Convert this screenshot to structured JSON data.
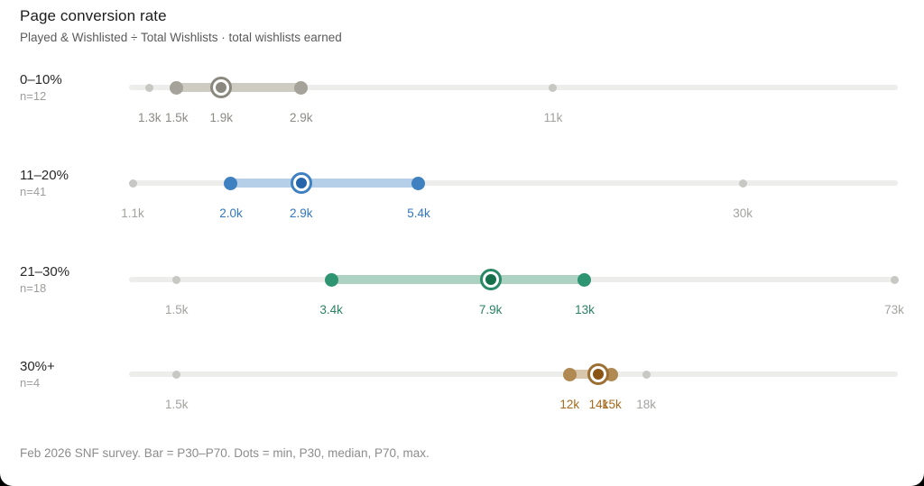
{
  "header": {
    "title": "Page conversion rate",
    "subtitle": "Played & Wishlisted ÷ Total Wishlists · total wishlists earned"
  },
  "footer": {
    "note": "Feb 2026 SNF survey. Bar = P30–P70. Dots = min, P30, median, P70, max."
  },
  "colors": {
    "track": "#ededeb",
    "gray_dot": "#c7c7c4",
    "gray_label": "#a2a29f"
  },
  "chart_data": {
    "type": "dot-range",
    "title": "Page conversion rate",
    "subtitle": "Played & Wishlisted ÷ Total Wishlists · total wishlists earned",
    "note": "Feb 2026 SNF survey. Bar = P30–P70. Dots = min, P30, median, P70, max.",
    "axis": {
      "scale": "log10",
      "domain_min": 1166,
      "domain_max": 68180,
      "unit": "total wishlists earned"
    },
    "legend": {
      "bar": "P30–P70",
      "dots": "min, P30, median, P70, max"
    },
    "rows": [
      {
        "range": "0–10%",
        "n": "n=12",
        "points": {
          "min": 1300,
          "p30": 1500,
          "median": 1900,
          "p70": 2900,
          "max": 11000
        },
        "labels": {
          "min": "1.3k",
          "p30": "1.5k",
          "median": "1.9k",
          "p70": "2.9k",
          "max": "11k"
        },
        "min_label_colored": true,
        "color": {
          "bar": "#cecbc2",
          "dot": "#a5a299",
          "ring": "#8b897f",
          "inner": "#8b897f",
          "label": "#8c8a82"
        }
      },
      {
        "range": "11–20%",
        "n": "n=41",
        "points": {
          "min": 1100,
          "p30": 2000,
          "median": 2900,
          "p70": 5400,
          "max": 30000
        },
        "labels": {
          "min": "1.1k",
          "p30": "2.0k",
          "median": "2.9k",
          "p70": "5.4k",
          "max": "30k"
        },
        "min_label_colored": false,
        "color": {
          "bar": "#b5cfe9",
          "dot": "#3f80c1",
          "ring": "#3f80c1",
          "inner": "#2765aa",
          "label": "#3377bd"
        }
      },
      {
        "range": "21–30%",
        "n": "n=18",
        "points": {
          "min": 1500,
          "p30": 3400,
          "median": 7900,
          "p70": 13000,
          "max": 73000
        },
        "labels": {
          "min": "1.5k",
          "p30": "3.4k",
          "median": "7.9k",
          "p70": "13k",
          "max": "73k"
        },
        "min_label_colored": false,
        "color": {
          "bar": "#aed2c2",
          "dot": "#2f9471",
          "ring": "#2a8a67",
          "inner": "#15704b",
          "label": "#2a8365"
        }
      },
      {
        "range": "30%+",
        "n": "n=4",
        "points": {
          "min": 1500,
          "p30": 12000,
          "median": 14000,
          "p70": 15000,
          "max": 18000
        },
        "labels": {
          "min": "1.5k",
          "p30": "12k",
          "median": "14k",
          "p70": "15k",
          "max": "18k"
        },
        "min_label_colored": false,
        "color": {
          "bar": "#d9c7ad",
          "dot": "#b08a52",
          "ring": "#9c6f33",
          "inner": "#8a5413",
          "label": "#a4691c"
        }
      }
    ]
  }
}
